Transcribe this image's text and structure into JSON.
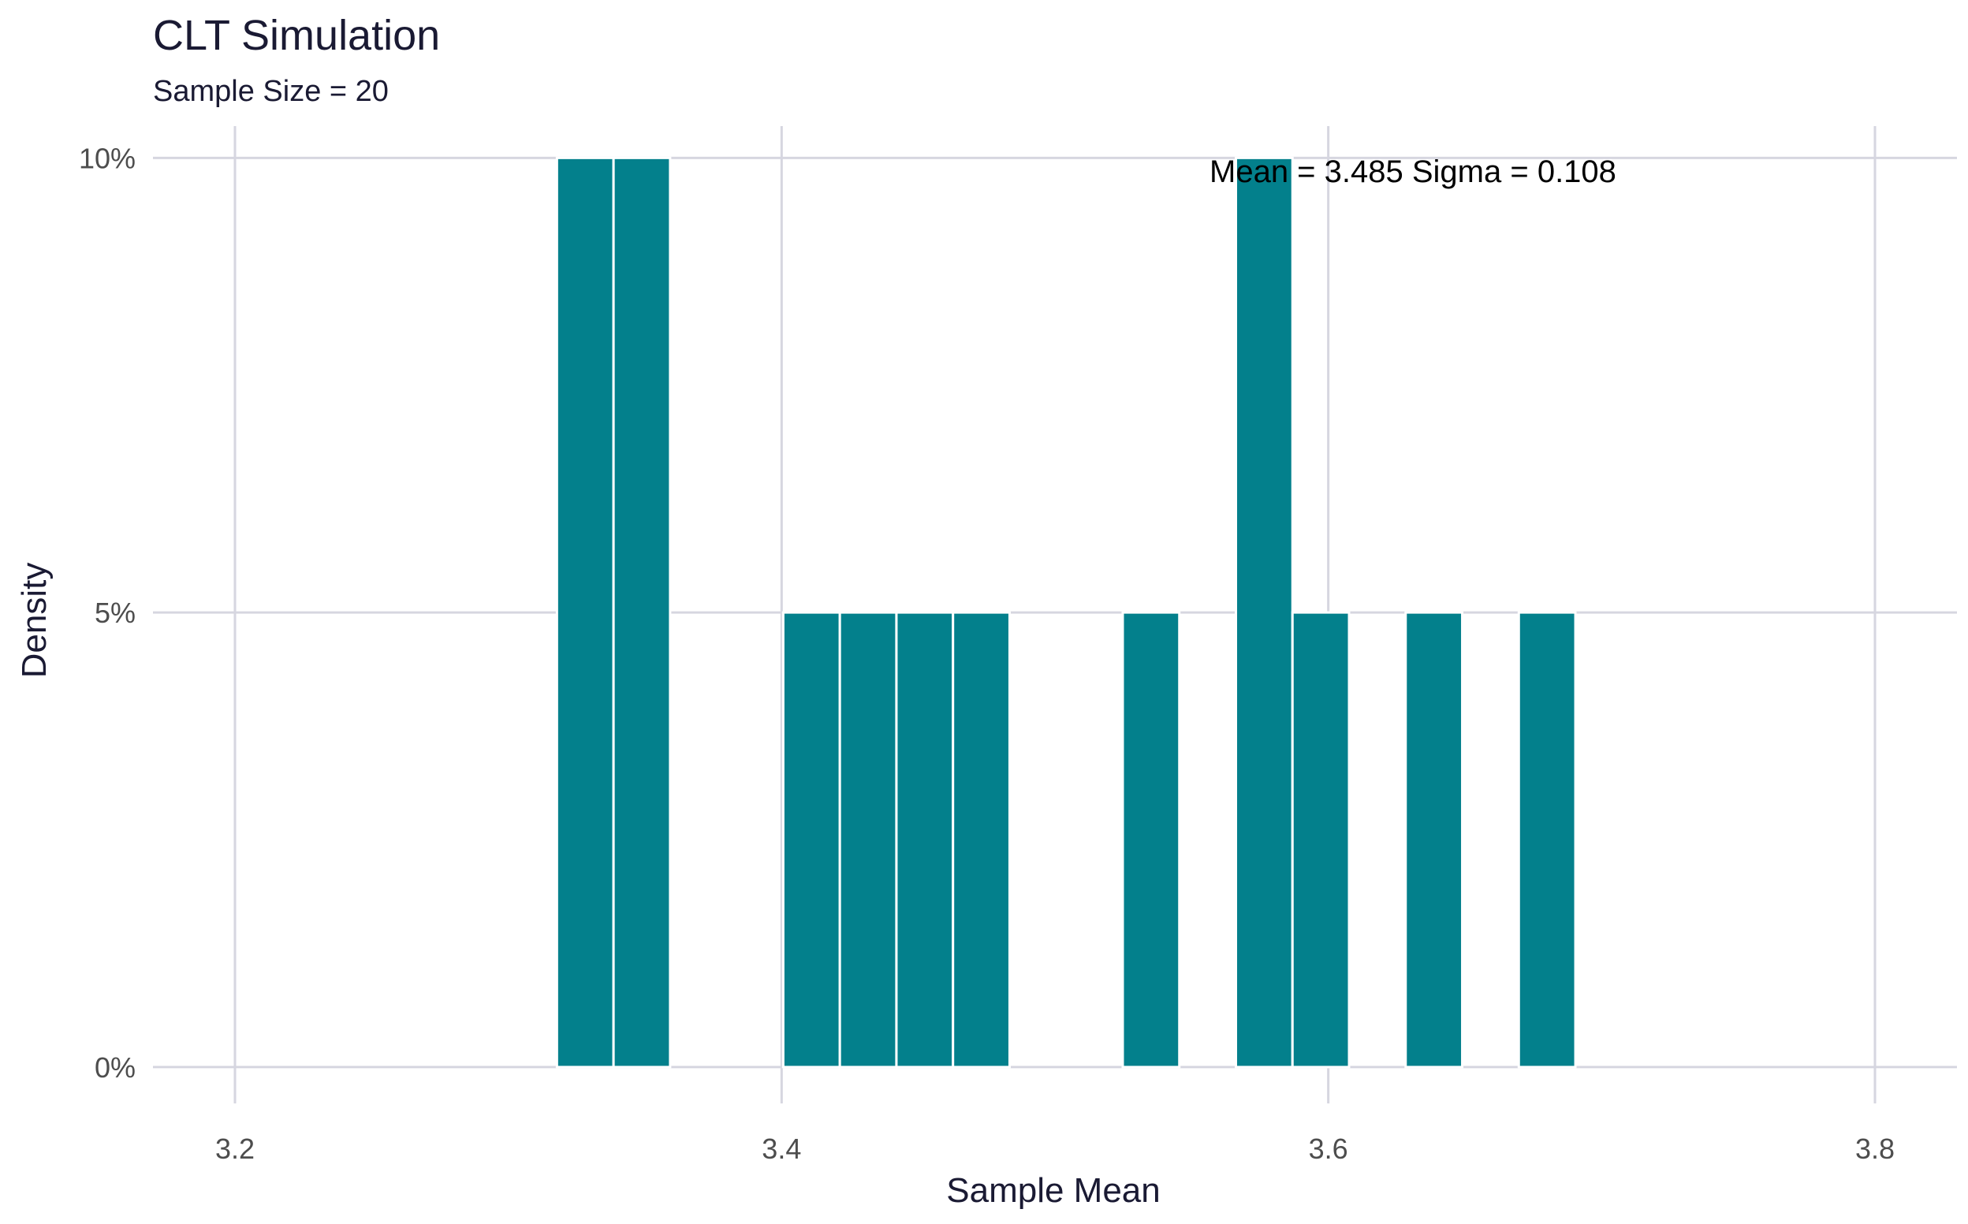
{
  "chart_data": {
    "type": "bar",
    "title": "CLT Simulation",
    "subtitle": "Sample Size = 20",
    "xlabel": "Sample Mean",
    "ylabel": "Density",
    "xlim": [
      3.17,
      3.83
    ],
    "ylim": [
      -0.004,
      0.1035
    ],
    "x_ticks": [
      3.2,
      3.4,
      3.6,
      3.8
    ],
    "x_tick_labels": [
      "3.2",
      "3.4",
      "3.6",
      "3.8"
    ],
    "y_ticks": [
      0,
      0.05,
      0.1
    ],
    "y_tick_labels": [
      "0%",
      "5%",
      "10%"
    ],
    "grid": true,
    "bar_color": "#03808c",
    "bin_width": 0.0207,
    "bins": [
      {
        "x_start": 3.3178,
        "x_end": 3.3385,
        "value": 0.1
      },
      {
        "x_start": 3.3385,
        "x_end": 3.3592,
        "value": 0.1
      },
      {
        "x_start": 3.4006,
        "x_end": 3.4213,
        "value": 0.05
      },
      {
        "x_start": 3.4213,
        "x_end": 3.442,
        "value": 0.05
      },
      {
        "x_start": 3.442,
        "x_end": 3.4627,
        "value": 0.05
      },
      {
        "x_start": 3.4627,
        "x_end": 3.4834,
        "value": 0.05
      },
      {
        "x_start": 3.5248,
        "x_end": 3.5455,
        "value": 0.05
      },
      {
        "x_start": 3.5662,
        "x_end": 3.5869,
        "value": 0.1
      },
      {
        "x_start": 3.5869,
        "x_end": 3.6076,
        "value": 0.05
      },
      {
        "x_start": 3.6283,
        "x_end": 3.649,
        "value": 0.05
      },
      {
        "x_start": 3.6697,
        "x_end": 3.6904,
        "value": 0.05
      }
    ],
    "annotation": {
      "text": "Mean =  3.485   Sigma =  0.108",
      "x": 3.58,
      "y": 0.1
    }
  }
}
